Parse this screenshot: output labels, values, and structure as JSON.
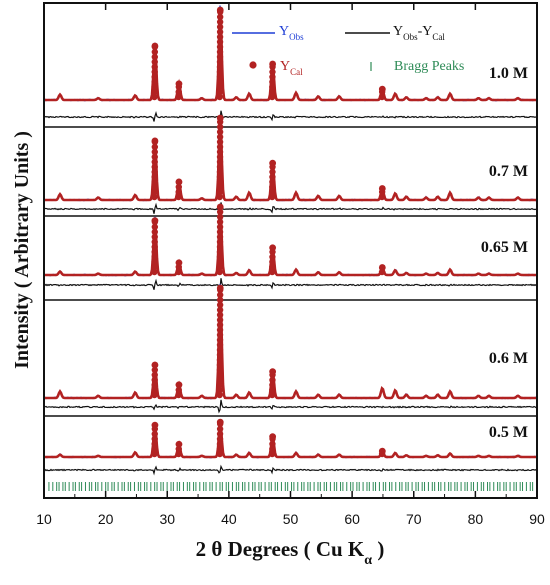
{
  "chart_data": {
    "type": "line",
    "xlabel": "2 θ Degrees ( Cu K",
    "xlabel_sub": "α",
    "xlabel_close": " )",
    "ylabel": "Intensity ( Arbitrary Units )",
    "xlim": [
      10,
      90
    ],
    "xticks": [
      "10",
      "20",
      "30",
      "40",
      "50",
      "60",
      "70",
      "80",
      "90"
    ],
    "grid": false,
    "legend": {
      "placement": "top",
      "entries": [
        {
          "key": "y_obs",
          "main": "Y",
          "sub": "Obs",
          "color": "#1f3fd6"
        },
        {
          "key": "y_obs_cal",
          "main": "Y",
          "sub": "Obs",
          "mid": "-Y",
          "sub2": "Cal",
          "color": "#111111"
        },
        {
          "key": "y_cal",
          "main": "Y",
          "sub": "Cal",
          "color": "#b22222"
        },
        {
          "key": "bragg",
          "main": "Bragg Peaks",
          "color": "#2e8b57"
        }
      ]
    },
    "peaks_2theta": [
      12.6,
      18.8,
      24.8,
      28.0,
      31.9,
      35.6,
      38.6,
      41.2,
      43.3,
      47.1,
      50.9,
      54.5,
      57.9,
      64.9,
      67.0,
      68.8,
      72.0,
      73.9,
      75.9,
      80.5,
      82.2,
      86.9
    ],
    "series": [
      {
        "name": "1.0 M",
        "peak_heights": [
          0.06,
          0.02,
          0.05,
          0.6,
          0.18,
          0.02,
          1.0,
          0.03,
          0.07,
          0.4,
          0.08,
          0.04,
          0.04,
          0.12,
          0.07,
          0.03,
          0.02,
          0.03,
          0.07,
          0.02,
          0.02,
          0.02
        ]
      },
      {
        "name": "0.7 M",
        "peak_heights": [
          0.07,
          0.03,
          0.06,
          0.72,
          0.22,
          0.02,
          1.0,
          0.04,
          0.09,
          0.45,
          0.09,
          0.05,
          0.05,
          0.14,
          0.08,
          0.04,
          0.03,
          0.04,
          0.09,
          0.03,
          0.03,
          0.03
        ]
      },
      {
        "name": "0.65 M",
        "peak_heights": [
          0.05,
          0.02,
          0.05,
          0.8,
          0.18,
          0.02,
          1.0,
          0.03,
          0.07,
          0.4,
          0.08,
          0.04,
          0.04,
          0.11,
          0.07,
          0.03,
          0.02,
          0.03,
          0.08,
          0.02,
          0.02,
          0.02
        ]
      },
      {
        "name": "0.6 M",
        "peak_heights": [
          0.06,
          0.02,
          0.05,
          0.3,
          0.12,
          0.02,
          1.0,
          0.03,
          0.05,
          0.24,
          0.06,
          0.03,
          0.03,
          0.09,
          0.07,
          0.03,
          0.02,
          0.03,
          0.06,
          0.02,
          0.02,
          0.02
        ]
      },
      {
        "name": "0.5 M",
        "peak_heights": [
          0.04,
          0.02,
          0.08,
          0.55,
          0.22,
          0.02,
          0.6,
          0.04,
          0.07,
          0.35,
          0.07,
          0.04,
          0.04,
          0.1,
          0.07,
          0.03,
          0.02,
          0.03,
          0.06,
          0.02,
          0.02,
          0.02
        ]
      }
    ]
  }
}
